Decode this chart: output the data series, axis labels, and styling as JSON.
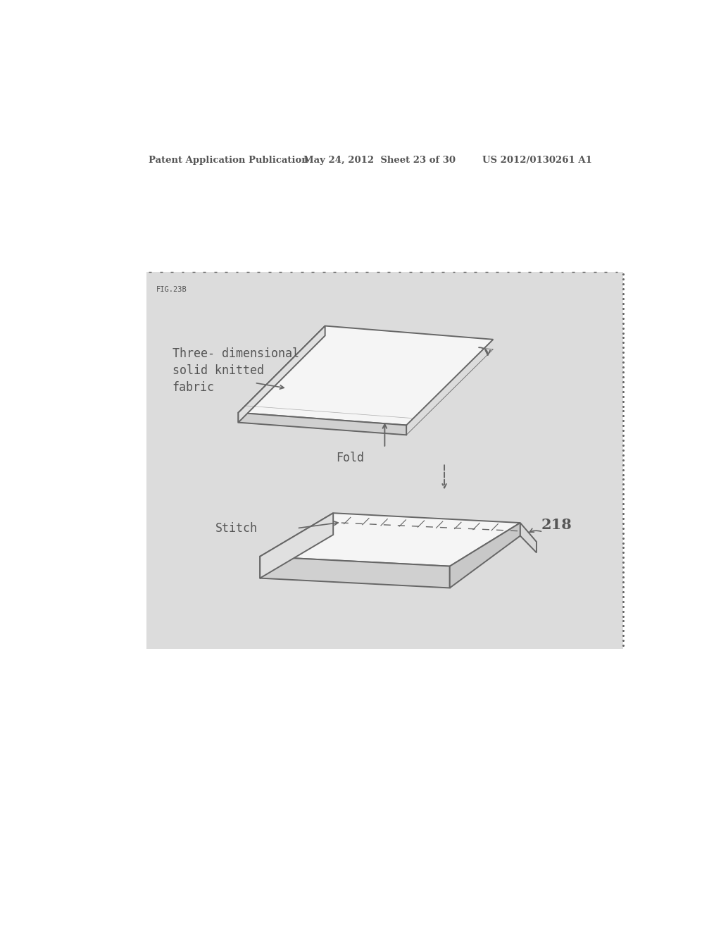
{
  "page_bg": "#ffffff",
  "header_text": "Patent Application Publication",
  "header_date": "May 24, 2012  Sheet 23 of 30",
  "header_patent": "US 2012/0130261 A1",
  "fig_label": "FIG.23B",
  "label_three_dim": "Three- dimensional\nsolid knitted\nfabric",
  "label_fold": "Fold",
  "label_stitch": "Stitch",
  "label_218": "218",
  "text_color": "#555555",
  "line_color": "#666666",
  "panel_bg": "#dcdcdc",
  "shape_top_face": "#f5f5f5",
  "shape_side_face": "#d0d0d0",
  "shape_front_face": "#e0e0e0"
}
